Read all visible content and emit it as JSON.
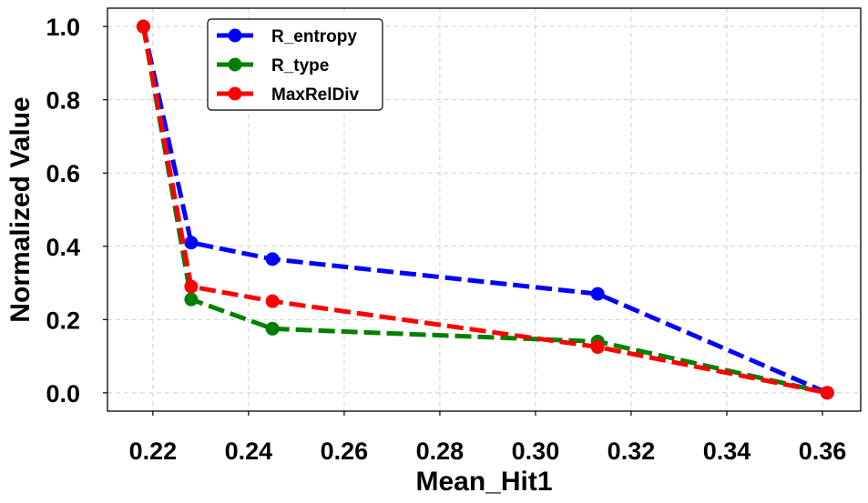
{
  "chart_data": {
    "type": "line",
    "title": "",
    "xlabel": "Mean_Hit1",
    "ylabel": "Normalized Value",
    "xlim": [
      0.2105,
      0.368
    ],
    "ylim": [
      -0.05,
      1.05
    ],
    "xticks": [
      0.22,
      0.24,
      0.26,
      0.28,
      0.3,
      0.32,
      0.34,
      0.36
    ],
    "yticks": [
      0.0,
      0.2,
      0.4,
      0.6,
      0.8,
      1.0
    ],
    "xtick_labels": [
      "0.22",
      "0.24",
      "0.26",
      "0.28",
      "0.30",
      "0.32",
      "0.34",
      "0.36"
    ],
    "ytick_labels": [
      "0.0",
      "0.2",
      "0.4",
      "0.6",
      "0.8",
      "1.0"
    ],
    "grid": true,
    "legend_position": "top-left",
    "x": [
      0.218,
      0.228,
      0.245,
      0.313,
      0.361
    ],
    "series": [
      {
        "name": "R_entropy",
        "color": "#0000ff",
        "values": [
          1.0,
          0.41,
          0.365,
          0.27,
          0.0
        ]
      },
      {
        "name": "R_type",
        "color": "#008000",
        "values": [
          1.0,
          0.255,
          0.175,
          0.14,
          0.0
        ]
      },
      {
        "name": "MaxRelDiv",
        "color": "#ff0000",
        "values": [
          1.0,
          0.29,
          0.25,
          0.125,
          0.0
        ]
      }
    ]
  }
}
